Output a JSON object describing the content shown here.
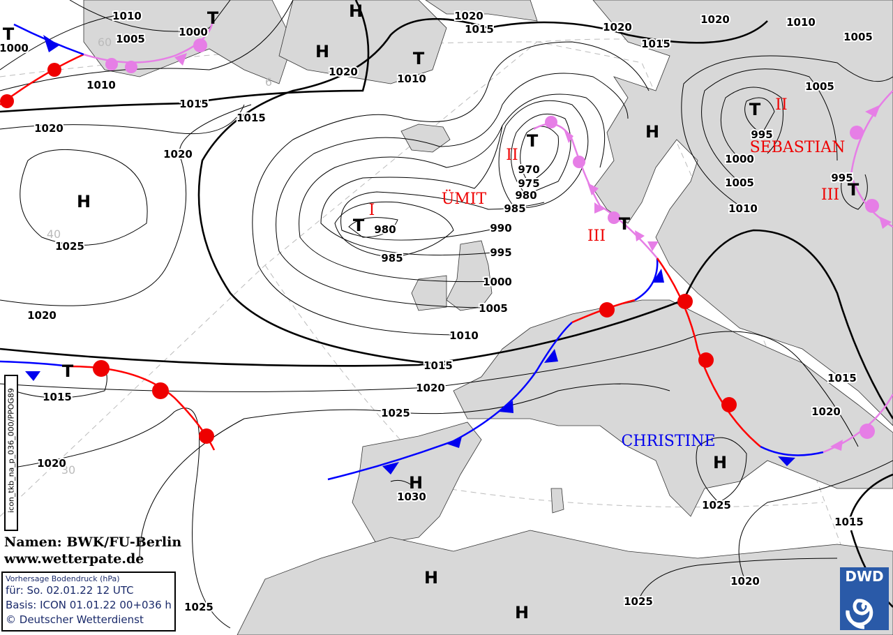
{
  "map": {
    "isobar_labels": [
      "1010",
      "1005",
      "1000",
      "1000",
      "1010",
      "1015",
      "1015",
      "1020",
      "1020",
      "1025",
      "1020",
      "1015",
      "1020",
      "1025",
      "1020",
      "1010",
      "1020",
      "1015",
      "1020",
      "1015",
      "1020",
      "1010",
      "1005",
      "1005",
      "995",
      "1000",
      "1005",
      "1010",
      "995",
      "970",
      "975",
      "980",
      "985",
      "990",
      "995",
      "1000",
      "1005",
      "1010",
      "1015",
      "1020",
      "1025",
      "980",
      "985",
      "1030",
      "1025",
      "1015",
      "1020",
      "1015",
      "1020",
      "1025"
    ],
    "centers": [
      "H",
      "H",
      "T",
      "T",
      "T",
      "H",
      "T",
      "T",
      "H",
      "T",
      "T",
      "T",
      "T",
      "H",
      "H",
      "H",
      "H"
    ],
    "storm_names": {
      "low1": "ÜMIT",
      "low2": "SEBASTIAN",
      "high1": "CHRISTINE"
    },
    "roman": [
      "I",
      "II",
      "III",
      "II",
      "III"
    ],
    "grid_labels": [
      "60",
      "6",
      "40",
      "30"
    ],
    "colors": {
      "land": "#d8d8d8",
      "cold_front": "#0000ff",
      "warm_front": "#ff0000",
      "occlusion": "#e67ee6",
      "low_name": "#e00000",
      "high_name": "#0000ee"
    }
  },
  "side_label": "icon_tkb_na_p_036_000/PPOG89",
  "credits": {
    "names": "Namen: BWK/FU-Berlin",
    "site": "www.wetterpate.de"
  },
  "infobox": {
    "title": "Vorhersage Bodendruck (hPa)",
    "valid": "für:  So. 02.01.22  12 UTC",
    "basis": "Basis: ICON  01.01.22 00+036 h",
    "copyright": "© Deutscher Wetterdienst"
  },
  "logo": {
    "text": "DWD"
  }
}
